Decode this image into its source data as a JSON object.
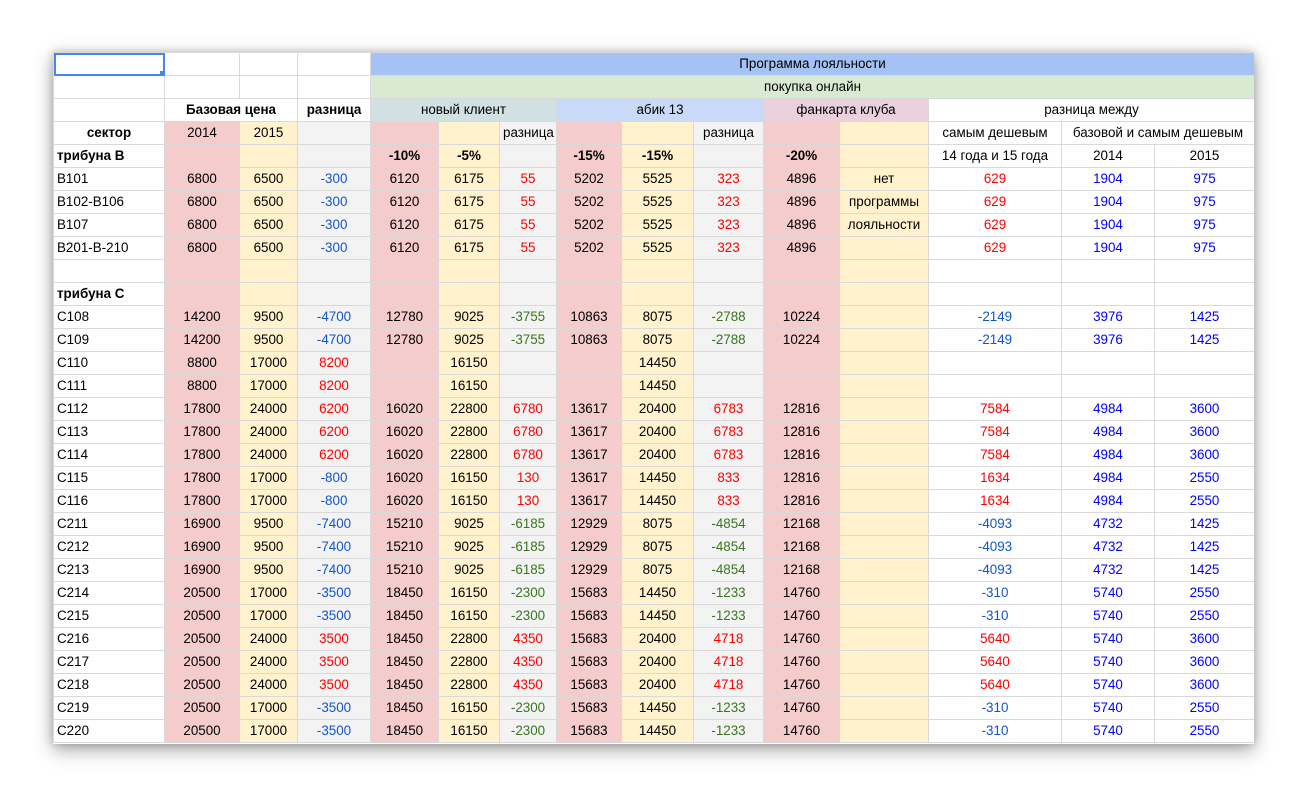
{
  "colors": {
    "pink": "#f4cccc",
    "yellow": "#fff2cc",
    "gray": "#f3f3f3",
    "program_header": "#a4c2f4",
    "online_header": "#d9ead3",
    "new_client_header": "#d0e0e3",
    "abik_header": "#c9daf8",
    "fan_card_header": "#ead1dc",
    "negative_diff": "#1155cc",
    "positive_diff": "#ff0000",
    "negative_green": "#38761d",
    "blue_values": "#0000ff",
    "selection": "#4a86e8"
  },
  "header": {
    "program": "Программа лояльности",
    "online": "покупка онлайн",
    "base_price": "Базовая цена",
    "diff": "разница",
    "new_client": "новый клиент",
    "abik": "абик 13",
    "fan_card": "фанкарта клуба",
    "diff_between": "разница между",
    "sector": "сектор",
    "y2014": "2014",
    "y2015": "2015",
    "diff_short": "разница",
    "cheapest": "самым дешевым",
    "base_cheapest": "базовой и самым дешевым",
    "years_14_15": "14 года и 15 года",
    "disc_new_2014": "-10%",
    "disc_new_2015": "-5%",
    "disc_abik_2014": "-15%",
    "disc_abik_2015": "-15%",
    "disc_fan": "-20%"
  },
  "groups": [
    {
      "title": "трибуна B",
      "rows": [
        {
          "sector": "B101",
          "p14": "6800",
          "p15": "6500",
          "d": "-300",
          "n14": "6120",
          "n15": "6175",
          "nd": "55",
          "a14": "5202",
          "a15": "5525",
          "ad": "323",
          "f": "4896",
          "note": "нет",
          "c": "629",
          "b14": "1904",
          "b15": "975",
          "cls": {
            "d": "cb",
            "nd": "cr",
            "ad": "cr",
            "c": "cr"
          }
        },
        {
          "sector": "B102-B106",
          "p14": "6800",
          "p15": "6500",
          "d": "-300",
          "n14": "6120",
          "n15": "6175",
          "nd": "55",
          "a14": "5202",
          "a15": "5525",
          "ad": "323",
          "f": "4896",
          "note": "программы",
          "c": "629",
          "b14": "1904",
          "b15": "975",
          "cls": {
            "d": "cb",
            "nd": "cr",
            "ad": "cr",
            "c": "cr"
          }
        },
        {
          "sector": "B107",
          "p14": "6800",
          "p15": "6500",
          "d": "-300",
          "n14": "6120",
          "n15": "6175",
          "nd": "55",
          "a14": "5202",
          "a15": "5525",
          "ad": "323",
          "f": "4896",
          "note": "лояльности",
          "c": "629",
          "b14": "1904",
          "b15": "975",
          "cls": {
            "d": "cb",
            "nd": "cr",
            "ad": "cr",
            "c": "cr"
          }
        },
        {
          "sector": "B201-B-210",
          "p14": "6800",
          "p15": "6500",
          "d": "-300",
          "n14": "6120",
          "n15": "6175",
          "nd": "55",
          "a14": "5202",
          "a15": "5525",
          "ad": "323",
          "f": "4896",
          "note": "",
          "c": "629",
          "b14": "1904",
          "b15": "975",
          "cls": {
            "d": "cb",
            "nd": "cr",
            "ad": "cr",
            "c": "cr"
          }
        }
      ]
    },
    {
      "title": "трибуна C",
      "rows": [
        {
          "sector": "C108",
          "p14": "14200",
          "p15": "9500",
          "d": "-4700",
          "n14": "12780",
          "n15": "9025",
          "nd": "-3755",
          "a14": "10863",
          "a15": "8075",
          "ad": "-2788",
          "f": "10224",
          "note": "",
          "c": "-2149",
          "b14": "3976",
          "b15": "1425",
          "cls": {
            "d": "cb",
            "nd": "cg",
            "ad": "cg",
            "c": "cb"
          }
        },
        {
          "sector": "C109",
          "p14": "14200",
          "p15": "9500",
          "d": "-4700",
          "n14": "12780",
          "n15": "9025",
          "nd": "-3755",
          "a14": "10863",
          "a15": "8075",
          "ad": "-2788",
          "f": "10224",
          "note": "",
          "c": "-2149",
          "b14": "3976",
          "b15": "1425",
          "cls": {
            "d": "cb",
            "nd": "cg",
            "ad": "cg",
            "c": "cb"
          }
        },
        {
          "sector": "C110",
          "p14": "8800",
          "p15": "17000",
          "d": "8200",
          "n14": "",
          "n15": "16150",
          "nd": "",
          "a14": "",
          "a15": "14450",
          "ad": "",
          "f": "",
          "note": "",
          "c": "",
          "b14": "",
          "b15": "",
          "cls": {
            "d": "cr",
            "nd": "cr",
            "ad": "cr",
            "c": "cr"
          }
        },
        {
          "sector": "C111",
          "p14": "8800",
          "p15": "17000",
          "d": "8200",
          "n14": "",
          "n15": "16150",
          "nd": "",
          "a14": "",
          "a15": "14450",
          "ad": "",
          "f": "",
          "note": "",
          "c": "",
          "b14": "",
          "b15": "",
          "cls": {
            "d": "cr",
            "nd": "cr",
            "ad": "cr",
            "c": "cr"
          }
        },
        {
          "sector": "C112",
          "p14": "17800",
          "p15": "24000",
          "d": "6200",
          "n14": "16020",
          "n15": "22800",
          "nd": "6780",
          "a14": "13617",
          "a15": "20400",
          "ad": "6783",
          "f": "12816",
          "note": "",
          "c": "7584",
          "b14": "4984",
          "b15": "3600",
          "cls": {
            "d": "cr",
            "nd": "cr",
            "ad": "cr",
            "c": "cr"
          }
        },
        {
          "sector": "C113",
          "p14": "17800",
          "p15": "24000",
          "d": "6200",
          "n14": "16020",
          "n15": "22800",
          "nd": "6780",
          "a14": "13617",
          "a15": "20400",
          "ad": "6783",
          "f": "12816",
          "note": "",
          "c": "7584",
          "b14": "4984",
          "b15": "3600",
          "cls": {
            "d": "cr",
            "nd": "cr",
            "ad": "cr",
            "c": "cr"
          }
        },
        {
          "sector": "C114",
          "p14": "17800",
          "p15": "24000",
          "d": "6200",
          "n14": "16020",
          "n15": "22800",
          "nd": "6780",
          "a14": "13617",
          "a15": "20400",
          "ad": "6783",
          "f": "12816",
          "note": "",
          "c": "7584",
          "b14": "4984",
          "b15": "3600",
          "cls": {
            "d": "cr",
            "nd": "cr",
            "ad": "cr",
            "c": "cr"
          }
        },
        {
          "sector": "C115",
          "p14": "17800",
          "p15": "17000",
          "d": "-800",
          "n14": "16020",
          "n15": "16150",
          "nd": "130",
          "a14": "13617",
          "a15": "14450",
          "ad": "833",
          "f": "12816",
          "note": "",
          "c": "1634",
          "b14": "4984",
          "b15": "2550",
          "cls": {
            "d": "cb",
            "nd": "cr",
            "ad": "cr",
            "c": "cr"
          }
        },
        {
          "sector": "C116",
          "p14": "17800",
          "p15": "17000",
          "d": "-800",
          "n14": "16020",
          "n15": "16150",
          "nd": "130",
          "a14": "13617",
          "a15": "14450",
          "ad": "833",
          "f": "12816",
          "note": "",
          "c": "1634",
          "b14": "4984",
          "b15": "2550",
          "cls": {
            "d": "cb",
            "nd": "cr",
            "ad": "cr",
            "c": "cr"
          }
        },
        {
          "sector": "C211",
          "p14": "16900",
          "p15": "9500",
          "d": "-7400",
          "n14": "15210",
          "n15": "9025",
          "nd": "-6185",
          "a14": "12929",
          "a15": "8075",
          "ad": "-4854",
          "f": "12168",
          "note": "",
          "c": "-4093",
          "b14": "4732",
          "b15": "1425",
          "cls": {
            "d": "cb",
            "nd": "cg",
            "ad": "cg",
            "c": "cb"
          }
        },
        {
          "sector": "C212",
          "p14": "16900",
          "p15": "9500",
          "d": "-7400",
          "n14": "15210",
          "n15": "9025",
          "nd": "-6185",
          "a14": "12929",
          "a15": "8075",
          "ad": "-4854",
          "f": "12168",
          "note": "",
          "c": "-4093",
          "b14": "4732",
          "b15": "1425",
          "cls": {
            "d": "cb",
            "nd": "cg",
            "ad": "cg",
            "c": "cb"
          }
        },
        {
          "sector": "C213",
          "p14": "16900",
          "p15": "9500",
          "d": "-7400",
          "n14": "15210",
          "n15": "9025",
          "nd": "-6185",
          "a14": "12929",
          "a15": "8075",
          "ad": "-4854",
          "f": "12168",
          "note": "",
          "c": "-4093",
          "b14": "4732",
          "b15": "1425",
          "cls": {
            "d": "cb",
            "nd": "cg",
            "ad": "cg",
            "c": "cb"
          }
        },
        {
          "sector": "C214",
          "p14": "20500",
          "p15": "17000",
          "d": "-3500",
          "n14": "18450",
          "n15": "16150",
          "nd": "-2300",
          "a14": "15683",
          "a15": "14450",
          "ad": "-1233",
          "f": "14760",
          "note": "",
          "c": "-310",
          "b14": "5740",
          "b15": "2550",
          "cls": {
            "d": "cb",
            "nd": "cg",
            "ad": "cg",
            "c": "cb"
          }
        },
        {
          "sector": "C215",
          "p14": "20500",
          "p15": "17000",
          "d": "-3500",
          "n14": "18450",
          "n15": "16150",
          "nd": "-2300",
          "a14": "15683",
          "a15": "14450",
          "ad": "-1233",
          "f": "14760",
          "note": "",
          "c": "-310",
          "b14": "5740",
          "b15": "2550",
          "cls": {
            "d": "cb",
            "nd": "cg",
            "ad": "cg",
            "c": "cb"
          }
        },
        {
          "sector": "C216",
          "p14": "20500",
          "p15": "24000",
          "d": "3500",
          "n14": "18450",
          "n15": "22800",
          "nd": "4350",
          "a14": "15683",
          "a15": "20400",
          "ad": "4718",
          "f": "14760",
          "note": "",
          "c": "5640",
          "b14": "5740",
          "b15": "3600",
          "cls": {
            "d": "cr",
            "nd": "cr",
            "ad": "cr",
            "c": "cr"
          }
        },
        {
          "sector": "C217",
          "p14": "20500",
          "p15": "24000",
          "d": "3500",
          "n14": "18450",
          "n15": "22800",
          "nd": "4350",
          "a14": "15683",
          "a15": "20400",
          "ad": "4718",
          "f": "14760",
          "note": "",
          "c": "5640",
          "b14": "5740",
          "b15": "3600",
          "cls": {
            "d": "cr",
            "nd": "cr",
            "ad": "cr",
            "c": "cr"
          }
        },
        {
          "sector": "C218",
          "p14": "20500",
          "p15": "24000",
          "d": "3500",
          "n14": "18450",
          "n15": "22800",
          "nd": "4350",
          "a14": "15683",
          "a15": "20400",
          "ad": "4718",
          "f": "14760",
          "note": "",
          "c": "5640",
          "b14": "5740",
          "b15": "3600",
          "cls": {
            "d": "cr",
            "nd": "cr",
            "ad": "cr",
            "c": "cr"
          }
        },
        {
          "sector": "C219",
          "p14": "20500",
          "p15": "17000",
          "d": "-3500",
          "n14": "18450",
          "n15": "16150",
          "nd": "-2300",
          "a14": "15683",
          "a15": "14450",
          "ad": "-1233",
          "f": "14760",
          "note": "",
          "c": "-310",
          "b14": "5740",
          "b15": "2550",
          "cls": {
            "d": "cb",
            "nd": "cg",
            "ad": "cg",
            "c": "cb"
          }
        },
        {
          "sector": "C220",
          "p14": "20500",
          "p15": "17000",
          "d": "-3500",
          "n14": "18450",
          "n15": "16150",
          "nd": "-2300",
          "a14": "15683",
          "a15": "14450",
          "ad": "-1233",
          "f": "14760",
          "note": "",
          "c": "-310",
          "b14": "5740",
          "b15": "2550",
          "cls": {
            "d": "cb",
            "nd": "cg",
            "ad": "cg",
            "c": "cb"
          }
        }
      ]
    }
  ]
}
